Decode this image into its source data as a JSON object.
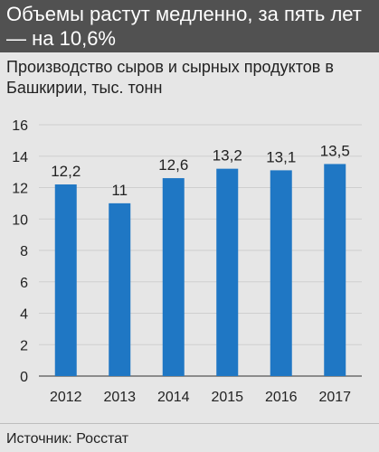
{
  "header": {
    "title": "Объемы растут медленно, за пять лет — на 10,6%",
    "subtitle": "Производство сыров и сырных продуктов в Башкирии, тыс. тонн"
  },
  "source": "Источник: Росстат",
  "colors": {
    "bar": "#1f77c4",
    "header_bg": "#515151",
    "background": "#e6e6e6",
    "grid": "#cfcfcf"
  },
  "chart_data": {
    "type": "bar",
    "categories": [
      "2012",
      "2013",
      "2014",
      "2015",
      "2016",
      "2017"
    ],
    "values": [
      12.2,
      11,
      12.6,
      13.2,
      13.1,
      13.5
    ],
    "value_labels": [
      "12,2",
      "11",
      "12,6",
      "13,2",
      "13,1",
      "13,5"
    ],
    "ylim": [
      0,
      16
    ],
    "yticks": [
      0,
      2,
      4,
      6,
      8,
      10,
      12,
      14,
      16
    ],
    "title": "Производство сыров и сырных продуктов в Башкирии, тыс. тонн",
    "xlabel": "",
    "ylabel": "",
    "grid": true
  }
}
